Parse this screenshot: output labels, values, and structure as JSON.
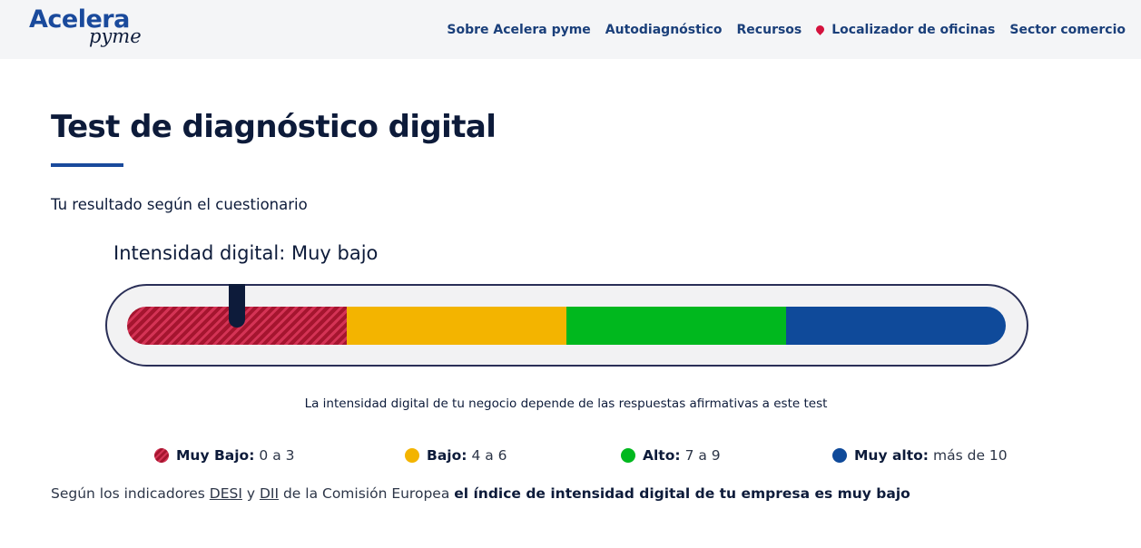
{
  "header": {
    "logo_main": "Acelera",
    "logo_sub": "pyme",
    "nav": [
      {
        "label": "Sobre Acelera pyme"
      },
      {
        "label": "Autodiagnóstico"
      },
      {
        "label": "Recursos"
      },
      {
        "label": "Localizador de oficinas",
        "icon": "map-pin-icon"
      },
      {
        "label": "Sector comercio"
      }
    ]
  },
  "main": {
    "title": "Test de diagnóstico digital",
    "subtitle": "Tu resultado según el cuestionario",
    "intensity_label": "Intensidad digital: Muy bajo",
    "gauge": {
      "segments": [
        {
          "name": "Muy Bajo",
          "color": "#a5152f"
        },
        {
          "name": "Bajo",
          "color": "#f3b400"
        },
        {
          "name": "Alto",
          "color": "#00b81e"
        },
        {
          "name": "Muy alto",
          "color": "#0f4a9a"
        }
      ],
      "indicator_fraction": 0.125
    },
    "explanation": "La intensidad digital de tu negocio depende de las respuestas afirmativas a este test",
    "legend": [
      {
        "label": "Muy Bajo:",
        "range": "0 a 3",
        "color": "#a5152f"
      },
      {
        "label": "Bajo:",
        "range": "4 a 6",
        "color": "#f3b400"
      },
      {
        "label": "Alto:",
        "range": "7 a 9",
        "color": "#00b81e"
      },
      {
        "label": "Muy alto:",
        "range": "más de 10",
        "color": "#0f4a9a"
      }
    ],
    "footer": {
      "prefix": "Según los indicadores ",
      "link1": "DESI",
      "mid1": " y ",
      "link2": "DII",
      "mid2": " de la Comisión Europea ",
      "strong": "el índice de intensidad digital de tu empresa es muy bajo"
    }
  }
}
